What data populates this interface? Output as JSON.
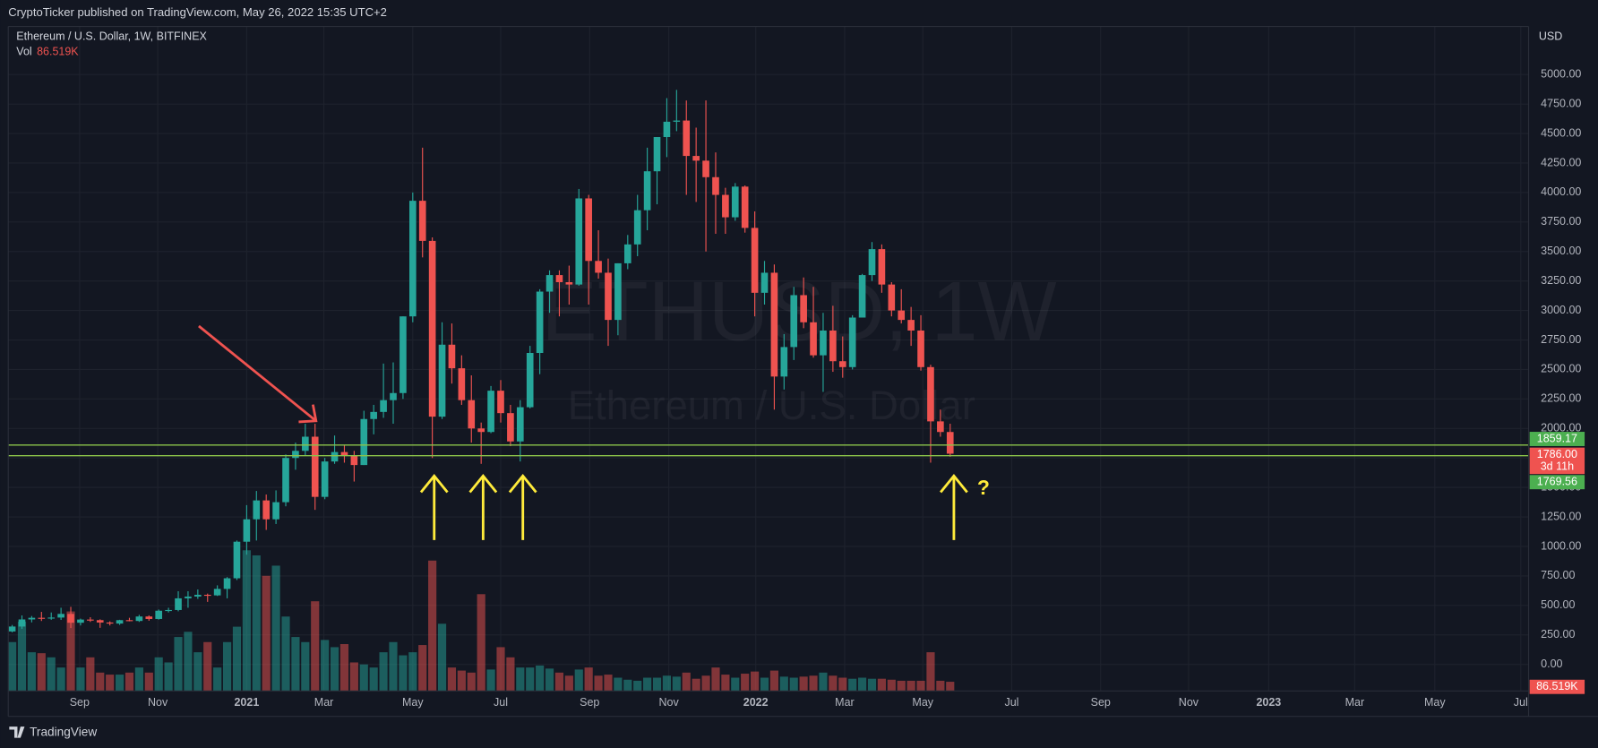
{
  "header": {
    "publisher": "CryptoTicker published on TradingView.com, May 26, 2022 15:35 UTC+2"
  },
  "footer": {
    "brand": "TradingView"
  },
  "chart_data": {
    "type": "candlestick",
    "title": "Ethereum / U.S. Dollar, 1W, BITFINEX",
    "watermark": "ETHUSD, 1W",
    "watermark_subtitle": "Ethereum / U.S. Dollar",
    "currency": "USD",
    "volume_name": "Vol",
    "up_color": "#26a69a",
    "down_color": "#ef5350",
    "price_line_color": "#8bc34a",
    "tag_color": "#4caf50",
    "grid": true,
    "open": [
      279,
      321,
      381,
      395,
      389,
      397,
      428,
      353,
      380,
      375,
      355,
      346,
      375,
      368,
      406,
      385,
      455,
      461,
      560,
      575,
      590,
      585,
      640,
      730,
      1040,
      1230,
      1390,
      1230,
      1375,
      1750,
      1810,
      1930,
      1420,
      1720,
      1800,
      1770,
      1690,
      2080,
      2140,
      2240,
      2300,
      2950,
      3930,
      3590,
      2100,
      2710,
      2510,
      2240,
      2000,
      1970,
      2320,
      2130,
      1890,
      2180,
      2640,
      3160,
      3300,
      3240,
      3220,
      3950,
      3420,
      3320,
      2920,
      3400,
      3560,
      3850,
      4180,
      4470,
      4600,
      4610,
      4310,
      4270,
      4130,
      3980,
      3790,
      4050,
      3700,
      3150,
      3320,
      2440,
      2690,
      3130,
      2900,
      2620,
      2830,
      2570,
      2520,
      2940,
      3300,
      3520,
      3220,
      3000,
      2920,
      2830,
      2520,
      2060,
      1970
    ],
    "high": [
      334,
      415,
      410,
      445,
      440,
      480,
      488,
      388,
      400,
      382,
      365,
      378,
      395,
      420,
      415,
      465,
      480,
      620,
      620,
      635,
      600,
      670,
      740,
      1050,
      1350,
      1470,
      1440,
      1475,
      1780,
      1880,
      2040,
      2040,
      1750,
      1940,
      1860,
      1810,
      2150,
      2200,
      2550,
      2560,
      2950,
      4000,
      4380,
      3620,
      2900,
      2890,
      2620,
      2450,
      2050,
      2360,
      2410,
      2200,
      2240,
      2700,
      3180,
      3340,
      3340,
      3380,
      4030,
      3980,
      3680,
      3440,
      3400,
      3640,
      3980,
      4380,
      4470,
      4800,
      4870,
      4780,
      4550,
      4780,
      4340,
      4040,
      4080,
      4060,
      3840,
      3420,
      3390,
      2800,
      3200,
      3280,
      3200,
      2980,
      3040,
      2780,
      2960,
      3310,
      3580,
      3560,
      3240,
      3180,
      3030,
      2960,
      2540,
      2160,
      2040
    ],
    "low": [
      272,
      301,
      356,
      368,
      378,
      377,
      308,
      330,
      360,
      310,
      330,
      335,
      365,
      360,
      370,
      380,
      440,
      450,
      480,
      555,
      530,
      580,
      560,
      715,
      930,
      1050,
      1140,
      1190,
      1340,
      1650,
      1770,
      1310,
      1400,
      1700,
      1710,
      1550,
      1690,
      1950,
      2090,
      2040,
      2250,
      2900,
      3450,
      1750,
      2080,
      2380,
      2200,
      1880,
      1700,
      1960,
      2050,
      1850,
      1720,
      2170,
      2460,
      2980,
      2950,
      3050,
      3210,
      3050,
      3270,
      2700,
      2790,
      3350,
      3460,
      3680,
      3900,
      4300,
      4520,
      3980,
      3920,
      3500,
      3650,
      3650,
      3760,
      3660,
      2950,
      3050,
      2160,
      2330,
      2580,
      2850,
      2600,
      2310,
      2480,
      2430,
      2500,
      2940,
      3250,
      3150,
      2950,
      2890,
      2700,
      2490,
      1710,
      1930,
      1760
    ],
    "close": [
      321,
      381,
      395,
      389,
      397,
      428,
      353,
      380,
      375,
      355,
      346,
      375,
      368,
      406,
      385,
      455,
      461,
      560,
      575,
      590,
      585,
      640,
      730,
      1040,
      1230,
      1390,
      1230,
      1375,
      1750,
      1810,
      1930,
      1420,
      1720,
      1800,
      1770,
      1690,
      2080,
      2140,
      2240,
      2300,
      2950,
      3930,
      3590,
      2100,
      2710,
      2510,
      2240,
      2000,
      1970,
      2320,
      2130,
      1890,
      2180,
      2640,
      3160,
      3300,
      3240,
      3220,
      3950,
      3420,
      3320,
      2920,
      3400,
      3560,
      3850,
      4180,
      4470,
      4600,
      4610,
      4310,
      4270,
      4130,
      3980,
      3790,
      4050,
      3700,
      3150,
      3320,
      2440,
      2690,
      3130,
      2900,
      2620,
      2830,
      2570,
      2520,
      2940,
      3300,
      3520,
      3220,
      3000,
      2920,
      2830,
      2520,
      2060,
      1970,
      1786
    ],
    "volume": [
      461000,
      654000,
      365000,
      356000,
      317000,
      221000,
      750000,
      221000,
      317000,
      173000,
      154000,
      154000,
      173000,
      221000,
      173000,
      317000,
      269000,
      509000,
      558000,
      365000,
      461000,
      221000,
      461000,
      606000,
      1327000,
      1279000,
      1086000,
      1182000,
      702000,
      509000,
      461000,
      846000,
      481000,
      413000,
      442000,
      269000,
      250000,
      221000,
      365000,
      461000,
      336000,
      365000,
      433000,
      1230000,
      634000,
      221000,
      192000,
      173000,
      913000,
      202000,
      413000,
      317000,
      221000,
      221000,
      240000,
      211000,
      173000,
      144000,
      202000,
      221000,
      144000,
      154000,
      125000,
      106000,
      96000,
      125000,
      125000,
      144000,
      135000,
      173000,
      115000,
      144000,
      221000,
      154000,
      125000,
      163000,
      183000,
      125000,
      192000,
      135000,
      125000,
      135000,
      144000,
      173000,
      144000,
      125000,
      115000,
      125000,
      115000,
      115000,
      106000,
      96000,
      96000,
      96000,
      365000,
      96000,
      86519
    ],
    "last_volume": {
      "value": 86519,
      "label": "86.519K"
    },
    "last_price": {
      "value": 1786,
      "label": "1786.00"
    },
    "countdown": "3d 11h",
    "price_lines": [
      1859.17,
      1769.56
    ],
    "annotation": "?",
    "volume_lim": [
      0,
      6250000
    ],
    "ylim": [
      -225,
      5390
    ],
    "yticks": [
      {
        "value": 0,
        "label": "0.00"
      },
      {
        "value": 250,
        "label": "250.00"
      },
      {
        "value": 500,
        "label": "500.00"
      },
      {
        "value": 750,
        "label": "750.00"
      },
      {
        "value": 1000,
        "label": "1000.00"
      },
      {
        "value": 1250,
        "label": "1250.00"
      },
      {
        "value": 1500,
        "label": "1500.00"
      },
      {
        "value": 1750,
        "label": "1750.00"
      },
      {
        "value": 2000,
        "label": "2000.00"
      },
      {
        "value": 2250,
        "label": "2250.00"
      },
      {
        "value": 2500,
        "label": "2500.00"
      },
      {
        "value": 2750,
        "label": "2750.00"
      },
      {
        "value": 3000,
        "label": "3000.00"
      },
      {
        "value": 3250,
        "label": "3250.00"
      },
      {
        "value": 3500,
        "label": "3500.00"
      },
      {
        "value": 3750,
        "label": "3750.00"
      },
      {
        "value": 4000,
        "label": "4000.00"
      },
      {
        "value": 4250,
        "label": "4250.00"
      },
      {
        "value": 4500,
        "label": "4500.00"
      },
      {
        "value": 4750,
        "label": "4750.00"
      },
      {
        "value": 5000,
        "label": "5000.00"
      }
    ],
    "xlim": [
      -0.4,
      155.2
    ],
    "xticks": [
      {
        "value": 6.9,
        "label": "Sep"
      },
      {
        "value": 14.9,
        "label": "Nov"
      },
      {
        "value": 24,
        "label": "2021"
      },
      {
        "value": 31.9,
        "label": "Mar"
      },
      {
        "value": 41,
        "label": "May"
      },
      {
        "value": 50,
        "label": "Jul"
      },
      {
        "value": 59.1,
        "label": "Sep"
      },
      {
        "value": 67.2,
        "label": "Nov"
      },
      {
        "value": 76.1,
        "label": "2022"
      },
      {
        "value": 85.2,
        "label": "Mar"
      },
      {
        "value": 93.2,
        "label": "May"
      },
      {
        "value": 102.3,
        "label": "Jul"
      },
      {
        "value": 111.4,
        "label": "Sep"
      },
      {
        "value": 120.4,
        "label": "Nov"
      },
      {
        "value": 128.6,
        "label": "2023"
      },
      {
        "value": 137.4,
        "label": "Mar"
      },
      {
        "value": 145.6,
        "label": "May"
      },
      {
        "value": 154.4,
        "label": "Jul"
      }
    ]
  }
}
